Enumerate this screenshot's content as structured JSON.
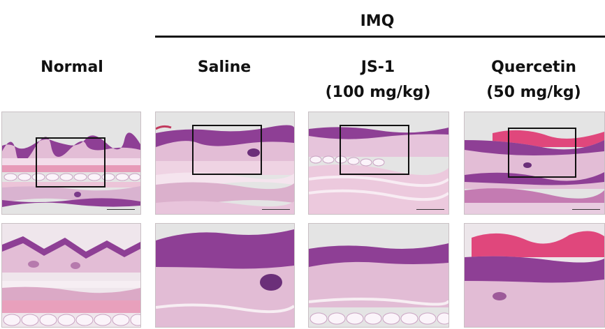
{
  "header": {
    "group_label": "IMQ"
  },
  "columns": [
    {
      "label_line1": "Normal",
      "label_line2": ""
    },
    {
      "label_line1": "Saline",
      "label_line2": ""
    },
    {
      "label_line1": "JS-1",
      "label_line2": "(100 mg/kg)"
    },
    {
      "label_line1": "Quercetin",
      "label_line2": "(50 mg/kg)"
    }
  ],
  "colors": {
    "epidermis": "#8e3f95",
    "dermis": "#e3bdd6",
    "fat": "#f7eef6",
    "muscle": "#e79ab8",
    "background": "#e4e4e4"
  }
}
